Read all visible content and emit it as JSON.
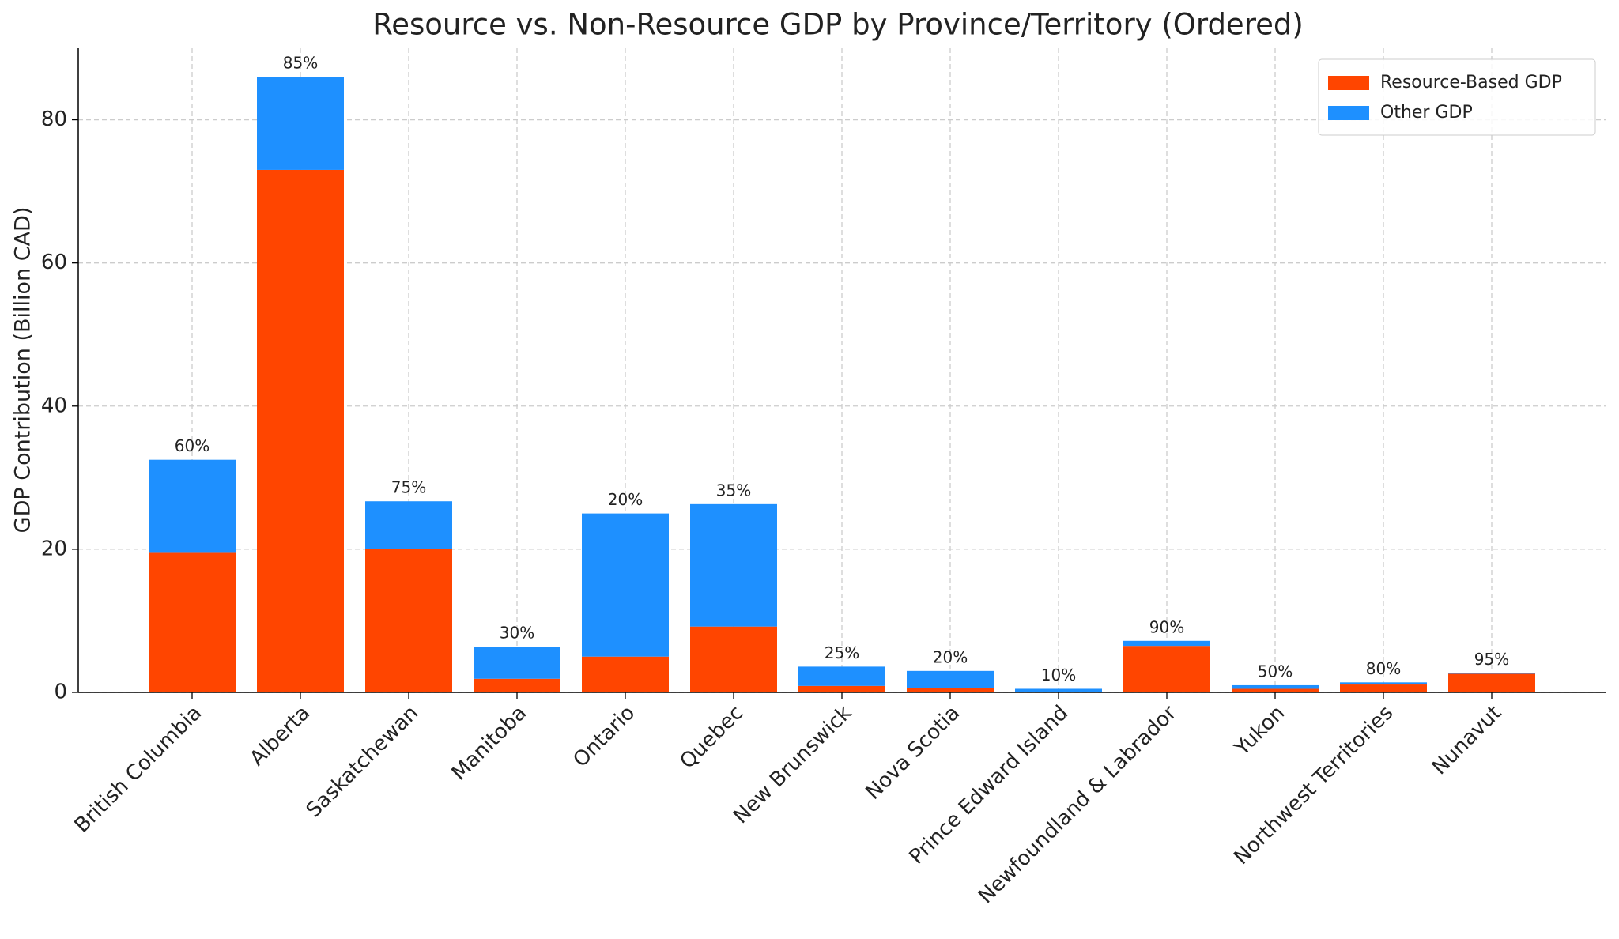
{
  "chart_data": {
    "type": "stacked_bar",
    "title": "Resource vs. Non-Resource GDP by Province/Territory (Ordered)",
    "y_label": "GDP Contribution (Billion CAD)",
    "categories": [
      "British Columbia",
      "Alberta",
      "Saskatchewan",
      "Manitoba",
      "Ontario",
      "Quebec",
      "New Brunswick",
      "Nova Scotia",
      "Prince Edward Island",
      "Newfoundland & Labrador",
      "Yukon",
      "Northwest Territories",
      "Nunavut"
    ],
    "series": [
      {
        "name": "Resource-Based GDP",
        "color": "#ff4500",
        "values": [
          19.5,
          73,
          20,
          1.9,
          5,
          9.2,
          0.9,
          0.6,
          0.05,
          6.5,
          0.5,
          1.1,
          2.6
        ]
      },
      {
        "name": "Other GDP",
        "color": "#1e90ff",
        "values": [
          13,
          13,
          6.7,
          4.5,
          20,
          17.1,
          2.7,
          2.4,
          0.45,
          0.7,
          0.5,
          0.3,
          0.1
        ]
      }
    ],
    "share_labels": [
      "60%",
      "85%",
      "75%",
      "30%",
      "20%",
      "35%",
      "25%",
      "20%",
      "10%",
      "90%",
      "50%",
      "80%",
      "95%"
    ],
    "ylim": [
      0,
      90
    ],
    "yticks": [
      0,
      20,
      40,
      60,
      80
    ],
    "grid": true,
    "legend": "upper right"
  }
}
